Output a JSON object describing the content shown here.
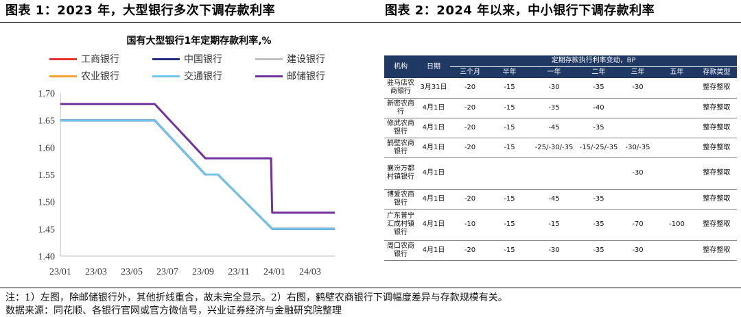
{
  "left_title": "图表 1：2023 年，大型银行多次下调存款利率",
  "right_title": "图表 2：2024 年以来，中小银行下调存款利率",
  "notes": {
    "line1": "注：1）左图，除邮储银行外，其他折线重合，故未完全显示。2）右图，鹤壁农商银行下调幅度差异与存款规模有关。",
    "line2": "数据来源：同花顺、各银行官网或官方微信号，兴业证券经济与金融研究院整理"
  },
  "chart_data": [
    {
      "type": "line",
      "title": "国有大型银行1年定期存款利率,%",
      "xlabel": "",
      "ylabel": "",
      "x_ticks": [
        "23/01",
        "23/03",
        "23/05",
        "23/07",
        "23/09",
        "23/11",
        "24/01",
        "24/03"
      ],
      "y_ticks": [
        "1.40",
        "1.45",
        "1.50",
        "1.55",
        "1.60",
        "1.65",
        "1.70"
      ],
      "ylim": [
        1.4,
        1.7
      ],
      "grid": false,
      "legend_position": "top",
      "series": [
        {
          "name": "工商银行",
          "color": "#e03030",
          "x": [
            "2023-01-01",
            "2023-06-08",
            "2023-09-01",
            "2023-09-22",
            "2023-12-22",
            "2024-04-05"
          ],
          "values": [
            1.65,
            1.65,
            1.55,
            1.55,
            1.45,
            1.45
          ]
        },
        {
          "name": "中国银行",
          "color": "#1f2f7f",
          "x": [
            "2023-01-01",
            "2023-06-08",
            "2023-09-01",
            "2023-09-22",
            "2023-12-22",
            "2024-04-05"
          ],
          "values": [
            1.65,
            1.65,
            1.55,
            1.55,
            1.45,
            1.45
          ]
        },
        {
          "name": "建设银行",
          "color": "#c0c0c0",
          "x": [
            "2023-01-01",
            "2023-06-08",
            "2023-09-01",
            "2023-09-22",
            "2023-12-22",
            "2024-04-05"
          ],
          "values": [
            1.65,
            1.65,
            1.55,
            1.55,
            1.45,
            1.45
          ]
        },
        {
          "name": "农业银行",
          "color": "#f5a030",
          "x": [
            "2023-01-01",
            "2023-06-08",
            "2023-09-01",
            "2023-09-22",
            "2023-12-22",
            "2024-04-05"
          ],
          "values": [
            1.65,
            1.65,
            1.55,
            1.55,
            1.45,
            1.45
          ]
        },
        {
          "name": "交通银行",
          "color": "#6ec6ee",
          "x": [
            "2023-01-01",
            "2023-06-08",
            "2023-09-01",
            "2023-09-22",
            "2023-12-22",
            "2024-04-05"
          ],
          "values": [
            1.65,
            1.65,
            1.55,
            1.55,
            1.45,
            1.45
          ]
        },
        {
          "name": "邮储银行",
          "color": "#7030a0",
          "x": [
            "2023-01-01",
            "2023-06-08",
            "2023-09-01",
            "2023-12-20",
            "2023-12-22",
            "2024-04-05"
          ],
          "values": [
            1.68,
            1.68,
            1.58,
            1.58,
            1.48,
            1.48
          ]
        }
      ]
    },
    {
      "type": "table",
      "group_header": "定期存款执行利率变动，BP",
      "columns": [
        "机构",
        "日期",
        "三个月",
        "半年",
        "一年",
        "二年",
        "三年",
        "五年",
        "存款类型"
      ],
      "rows": [
        [
          "驻马店农商银行",
          "3月31日",
          "-20",
          "-15",
          "-30",
          "-35",
          "-30",
          "",
          "整存整取"
        ],
        [
          "新密农商行",
          "4月1日",
          "-20",
          "-15",
          "-35",
          "-40",
          "",
          "",
          "整存整取"
        ],
        [
          "修武农商银行",
          "4月1日",
          "-20",
          "-15",
          "-45",
          "-35",
          "",
          "",
          "整存整取"
        ],
        [
          "鹤壁农商银行",
          "4月1日",
          "-20",
          "-15",
          "-25/-30/-35",
          "-15/-25/-35",
          "-30/-35",
          "",
          "整存整取"
        ],
        [
          "襄汾万都村镇银行",
          "4月1日",
          "",
          "",
          "",
          "",
          "-30",
          "",
          "整存整取"
        ],
        [
          "博爱农商银行",
          "4月1日",
          "-20",
          "-15",
          "-45",
          "-35",
          "",
          "",
          "整存整取"
        ],
        [
          "广东普宁汇成村镇银行",
          "4月1日",
          "-10",
          "-15",
          "-15",
          "-35",
          "-70",
          "-100",
          "整存整取"
        ],
        [
          "周口农商银行",
          "4月1日",
          "-20",
          "-15",
          "-30",
          "-35",
          "-30",
          "",
          "整存整取"
        ]
      ]
    }
  ]
}
